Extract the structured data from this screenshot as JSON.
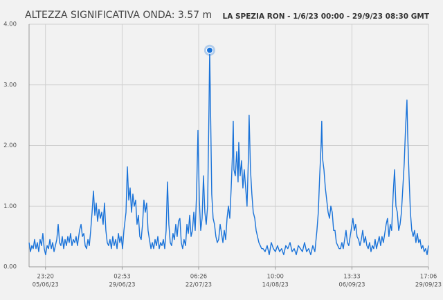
{
  "chart_data": {
    "type": "line",
    "title": "ALTEZZA SIGNIFICATIVA ONDA: 3.57 m",
    "subtitle": "LA SPEZIA RON - 1/6/23 00:00 - 29/9/23 08:30 GMT",
    "color": "#1a73d9",
    "grid": true,
    "xlim": [
      0,
      2897
    ],
    "ylim": [
      0,
      4
    ],
    "yticks": [
      {
        "value": 0,
        "label": "0.00"
      },
      {
        "value": 1,
        "label": "1.00"
      },
      {
        "value": 2,
        "label": "2.00"
      },
      {
        "value": 3,
        "label": "3.00"
      },
      {
        "value": 4,
        "label": "4.00"
      }
    ],
    "xticks": [
      {
        "value": 119,
        "label": "23:20",
        "date": "05/06/23"
      },
      {
        "value": 675,
        "label": "02:53",
        "date": "29/06/23"
      },
      {
        "value": 1230,
        "label": "06:26",
        "date": "22/07/23"
      },
      {
        "value": 1786,
        "label": "10:00",
        "date": "14/08/23"
      },
      {
        "value": 2342,
        "label": "13:33",
        "date": "06/09/23"
      },
      {
        "value": 2897,
        "label": "17:06",
        "date": "29/09/23"
      }
    ],
    "marker": {
      "x": 1310,
      "value": 3.57
    },
    "x": [
      0,
      10,
      20,
      30,
      40,
      50,
      60,
      70,
      80,
      90,
      100,
      110,
      120,
      131,
      141,
      151,
      161,
      171,
      181,
      191,
      201,
      211,
      221,
      231,
      241,
      251,
      261,
      271,
      281,
      291,
      301,
      311,
      321,
      331,
      341,
      351,
      366,
      377,
      387,
      397,
      407,
      417,
      427,
      437,
      447,
      457,
      467,
      477,
      487,
      497,
      507,
      517,
      527,
      537,
      547,
      557,
      567,
      577,
      587,
      597,
      607,
      617,
      628,
      638,
      648,
      658,
      668,
      678,
      688,
      703,
      713,
      723,
      733,
      743,
      753,
      763,
      773,
      783,
      793,
      803,
      813,
      823,
      833,
      843,
      853,
      863,
      873,
      884,
      894,
      904,
      914,
      924,
      934,
      944,
      954,
      964,
      974,
      984,
      994,
      1004,
      1014,
      1024,
      1034,
      1044,
      1054,
      1064,
      1074,
      1084,
      1094,
      1104,
      1114,
      1124,
      1135,
      1145,
      1155,
      1165,
      1175,
      1185,
      1195,
      1205,
      1215,
      1225,
      1235,
      1245,
      1255,
      1265,
      1275,
      1285,
      1295,
      1305,
      1310,
      1315,
      1325,
      1335,
      1345,
      1355,
      1365,
      1375,
      1386,
      1396,
      1406,
      1416,
      1426,
      1436,
      1446,
      1456,
      1466,
      1476,
      1481,
      1486,
      1496,
      1506,
      1516,
      1521,
      1531,
      1541,
      1551,
      1561,
      1571,
      1581,
      1591,
      1596,
      1606,
      1616,
      1626,
      1637,
      1647,
      1657,
      1667,
      1677,
      1687,
      1697,
      1712,
      1727,
      1742,
      1757,
      1772,
      1787,
      1802,
      1817,
      1832,
      1847,
      1862,
      1877,
      1893,
      1908,
      1923,
      1938,
      1953,
      1968,
      1983,
      1998,
      2013,
      2028,
      2043,
      2058,
      2073,
      2088,
      2098,
      2108,
      2118,
      2123,
      2128,
      2139,
      2149,
      2159,
      2169,
      2179,
      2189,
      2199,
      2209,
      2219,
      2229,
      2239,
      2249,
      2259,
      2269,
      2279,
      2289,
      2299,
      2309,
      2319,
      2329,
      2339,
      2349,
      2359,
      2369,
      2379,
      2390,
      2400,
      2410,
      2420,
      2430,
      2440,
      2450,
      2460,
      2470,
      2480,
      2490,
      2500,
      2510,
      2520,
      2530,
      2540,
      2550,
      2560,
      2570,
      2580,
      2590,
      2600,
      2610,
      2620,
      2630,
      2641,
      2651,
      2661,
      2671,
      2681,
      2691,
      2701,
      2711,
      2721,
      2731,
      2741,
      2746,
      2756,
      2766,
      2776,
      2786,
      2796,
      2806,
      2816,
      2826,
      2836,
      2846,
      2856,
      2866,
      2876,
      2887,
      2897
    ],
    "values": [
      0.4,
      0.25,
      0.35,
      0.3,
      0.45,
      0.3,
      0.4,
      0.25,
      0.45,
      0.35,
      0.55,
      0.3,
      0.2,
      0.35,
      0.3,
      0.45,
      0.3,
      0.4,
      0.25,
      0.35,
      0.45,
      0.7,
      0.4,
      0.35,
      0.5,
      0.3,
      0.45,
      0.35,
      0.5,
      0.4,
      0.55,
      0.35,
      0.45,
      0.4,
      0.5,
      0.35,
      0.6,
      0.7,
      0.5,
      0.55,
      0.35,
      0.3,
      0.45,
      0.35,
      0.6,
      0.9,
      1.25,
      0.85,
      1.05,
      0.75,
      0.95,
      0.8,
      0.9,
      0.7,
      1.05,
      0.6,
      0.4,
      0.35,
      0.45,
      0.3,
      0.5,
      0.35,
      0.45,
      0.3,
      0.55,
      0.4,
      0.5,
      0.3,
      0.6,
      0.9,
      1.65,
      1.1,
      1.3,
      0.9,
      1.2,
      1.0,
      1.1,
      0.7,
      0.85,
      0.5,
      0.45,
      0.7,
      1.1,
      0.9,
      1.05,
      0.6,
      0.45,
      0.3,
      0.4,
      0.3,
      0.45,
      0.35,
      0.5,
      0.3,
      0.4,
      0.35,
      0.45,
      0.3,
      0.6,
      1.4,
      0.7,
      0.4,
      0.35,
      0.55,
      0.45,
      0.7,
      0.5,
      0.75,
      0.8,
      0.4,
      0.3,
      0.45,
      0.35,
      0.7,
      0.55,
      0.85,
      0.5,
      0.6,
      0.9,
      0.6,
      1.2,
      2.25,
      1.1,
      0.6,
      0.8,
      1.5,
      0.9,
      0.7,
      1.0,
      2.6,
      3.57,
      2.8,
      1.2,
      0.8,
      0.7,
      0.5,
      0.4,
      0.45,
      0.7,
      0.55,
      0.4,
      0.6,
      0.45,
      0.8,
      1.0,
      0.8,
      1.3,
      1.9,
      2.4,
      1.6,
      1.5,
      1.9,
      1.4,
      2.05,
      1.5,
      1.75,
      1.3,
      1.6,
      1.3,
      1.0,
      1.8,
      2.5,
      1.6,
      1.2,
      0.9,
      0.8,
      0.6,
      0.5,
      0.4,
      0.35,
      0.3,
      0.3,
      0.25,
      0.35,
      0.2,
      0.4,
      0.3,
      0.25,
      0.35,
      0.25,
      0.3,
      0.2,
      0.35,
      0.3,
      0.4,
      0.25,
      0.3,
      0.2,
      0.35,
      0.3,
      0.25,
      0.4,
      0.25,
      0.3,
      0.2,
      0.35,
      0.25,
      0.6,
      0.9,
      1.5,
      2.0,
      2.4,
      1.8,
      1.6,
      1.3,
      1.1,
      0.9,
      0.8,
      1.0,
      0.9,
      0.6,
      0.6,
      0.4,
      0.35,
      0.3,
      0.3,
      0.4,
      0.3,
      0.45,
      0.6,
      0.4,
      0.35,
      0.5,
      0.65,
      0.8,
      0.6,
      0.7,
      0.5,
      0.45,
      0.35,
      0.45,
      0.6,
      0.4,
      0.5,
      0.35,
      0.3,
      0.4,
      0.25,
      0.35,
      0.3,
      0.45,
      0.3,
      0.4,
      0.5,
      0.35,
      0.5,
      0.4,
      0.55,
      0.7,
      0.8,
      0.5,
      0.7,
      0.6,
      1.2,
      1.6,
      1.0,
      0.9,
      0.6,
      0.7,
      0.9,
      1.3,
      1.7,
      2.3,
      2.75,
      2.2,
      1.5,
      0.9,
      0.6,
      0.5,
      0.6,
      0.4,
      0.55,
      0.4,
      0.45,
      0.3,
      0.35,
      0.25,
      0.3,
      0.2,
      0.35
    ]
  }
}
